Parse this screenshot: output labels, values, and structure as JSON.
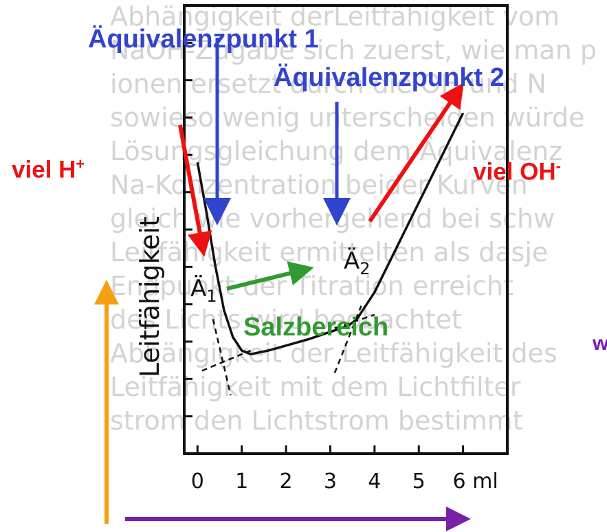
{
  "background_text_lines": [
    "Abhängigkeit derLeitfähigkeit vom",
    "NaOH-Zugabe sich zuerst, wie man p",
    "ionen ersetzt durch die OH und N",
    "sowieso wenig unterscheiden würde",
    "Lösungsgleichung dem Äquivalenz",
    "Na-Konzentration beider Kurven",
    "gleich wie vorhergehend bei schw",
    "Leitfähigkeit ermittelten als dasje",
    "Endpunkt der Titration erreicht",
    "des Lichts wird beobachtet",
    "Abhängigkeit der Leitfähigkeit des",
    "Leitfähigkeit mit dem Lichtfilter",
    "strom den Lichtstrom bestimmt"
  ],
  "annotations": {
    "eq1": "Äquivalenzpunkt 1",
    "eq2": "Äquivalenzpunkt 2",
    "h_plus": "viel H",
    "h_plus_sup": "+",
    "oh_minus": "viel OH",
    "oh_minus_sup": "-",
    "salt": "Salzbereich",
    "cut_right": "w"
  },
  "point_labels": {
    "a1_letter": "Ä",
    "a1_sub": "1",
    "a2_letter": "Ä",
    "a2_sub": "2"
  },
  "colors": {
    "blue": "#3344cc",
    "red": "#ee1111",
    "green": "#339933",
    "orange": "#f5a011",
    "purple": "#7a1fa8"
  },
  "chart_data": {
    "type": "line",
    "title": "",
    "xlabel": "",
    "ylabel": "Leitfähigkeit",
    "x_unit": "ml",
    "x_ticks": [
      0,
      1,
      2,
      3,
      4,
      5,
      6
    ],
    "x_tick_labels": [
      "0",
      "1",
      "2",
      "3",
      "4",
      "5",
      "6 ml"
    ],
    "xlim": [
      -0.3,
      7.0
    ],
    "ylim": [
      0,
      10
    ],
    "y_tick_count": 11,
    "series": [
      {
        "x": [
          0,
          0.2,
          0.4,
          0.6,
          0.8,
          1.0,
          1.2,
          1.6,
          2.5,
          3.4,
          3.6,
          4.0,
          5.0,
          6.0
        ],
        "y": [
          6.5,
          5.4,
          4.2,
          3.2,
          2.6,
          2.3,
          2.22,
          2.3,
          2.55,
          2.85,
          3.0,
          3.6,
          5.6,
          7.6
        ]
      }
    ],
    "equivalence_points": [
      {
        "x": 0.5,
        "y": 2.1
      },
      {
        "x": 3.5,
        "y": 2.9
      }
    ],
    "grid": false,
    "legend": "none"
  }
}
